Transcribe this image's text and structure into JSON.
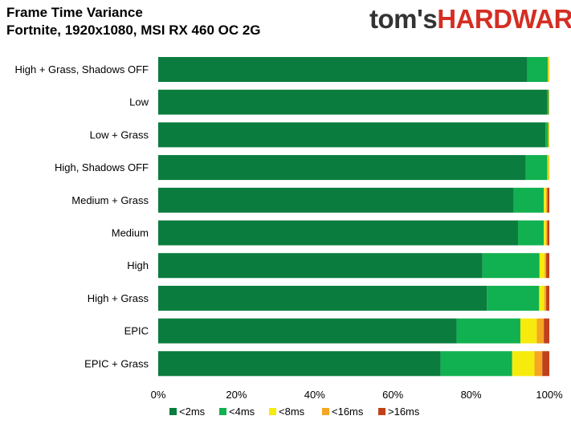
{
  "header": {
    "title_line1": "Frame Time Variance",
    "title_line2": "Fortnite, 1920x1080, MSI RX 460 OC 2G"
  },
  "logo": {
    "part1": "tom's",
    "part2": "HARDWARE"
  },
  "colors": {
    "<2ms": "#0a7c3e",
    "<4ms": "#11b050",
    "<8ms": "#f6eb0c",
    "<16ms": "#f5a623",
    ">16ms": "#c0401a"
  },
  "chart_data": {
    "type": "bar",
    "orientation": "horizontal",
    "stacked": true,
    "percent": true,
    "title": "Frame Time Variance",
    "subtitle": "Fortnite, 1920x1080, MSI RX 460 OC 2G",
    "categories": [
      "High + Grass, Shadows OFF",
      "Low",
      "Low + Grass",
      "High, Shadows OFF",
      "Medium + Grass",
      "Medium",
      "High",
      "High + Grass",
      "EPIC",
      "EPIC + Grass"
    ],
    "series": [
      {
        "name": "<2ms",
        "values": [
          94.4,
          99.4,
          99.0,
          94.0,
          90.9,
          92.0,
          82.9,
          84.0,
          76.3,
          72.2
        ]
      },
      {
        "name": "<4ms",
        "values": [
          5.2,
          0.4,
          0.7,
          5.5,
          7.7,
          6.6,
          14.6,
          13.4,
          16.3,
          18.3
        ]
      },
      {
        "name": "<8ms",
        "values": [
          0.3,
          0.1,
          0.2,
          0.4,
          0.6,
          0.6,
          1.3,
          1.3,
          4.2,
          5.7
        ]
      },
      {
        "name": "<16ms",
        "values": [
          0.05,
          0.05,
          0.05,
          0.05,
          0.3,
          0.3,
          0.4,
          0.5,
          1.8,
          2.0
        ]
      },
      {
        "name": ">16ms",
        "values": [
          0.05,
          0.05,
          0.05,
          0.05,
          0.5,
          0.5,
          0.8,
          0.8,
          1.4,
          1.8
        ]
      }
    ],
    "xlim": [
      0,
      100
    ],
    "xticks": [
      "0%",
      "20%",
      "40%",
      "60%",
      "80%",
      "100%"
    ],
    "legend_position": "bottom",
    "grid": false
  }
}
